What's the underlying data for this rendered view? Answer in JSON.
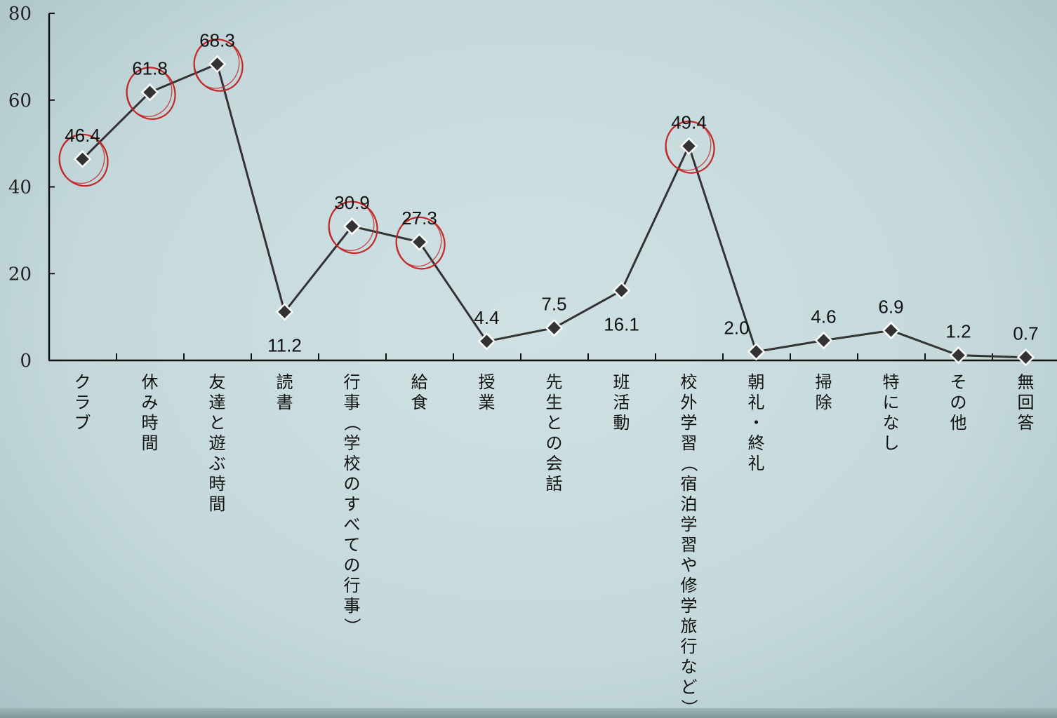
{
  "chart_data": {
    "type": "line",
    "title": "",
    "xlabel": "",
    "ylabel": "",
    "ylim": [
      0,
      80
    ],
    "yticks": [
      "0",
      "20",
      "40",
      "60",
      "80"
    ],
    "categories": [
      "クラブ",
      "休み時間",
      "友達と遊ぶ時間",
      "読書",
      "行事（学校のすべての行事）",
      "給食",
      "授業",
      "先生との会話",
      "班活動",
      "校外学習（宿泊学習や修学旅行など）",
      "朝礼・終礼",
      "掃除",
      "特になし",
      "その他",
      "無回答"
    ],
    "series": [
      {
        "values": [
          46.4,
          61.8,
          68.3,
          11.2,
          30.9,
          27.3,
          4.4,
          7.5,
          16.1,
          49.4,
          2.0,
          4.6,
          6.9,
          1.2,
          0.7
        ],
        "labels": [
          "46.4",
          "61.8",
          "68.3",
          "11.2",
          "30.9",
          "27.3",
          "4.4",
          "7.5",
          "16.1",
          "49.4",
          "2.0",
          "4.6",
          "6.9",
          "1.2",
          "0.7"
        ],
        "color": "#333333",
        "marker": "diamond"
      }
    ],
    "highlighted_categories": [
      "クラブ",
      "休み時間",
      "友達と遊ぶ時間",
      "行事（学校のすべての行事）",
      "給食",
      "校外学習（宿泊学習や修学旅行など）"
    ],
    "highlight_color": "#c0282a",
    "grid": false,
    "legend": "none"
  }
}
